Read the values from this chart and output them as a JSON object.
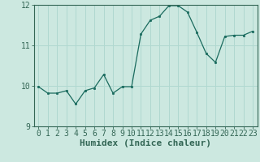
{
  "xlabel": "Humidex (Indice chaleur)",
  "x": [
    0,
    1,
    2,
    3,
    4,
    5,
    6,
    7,
    8,
    9,
    10,
    11,
    12,
    13,
    14,
    15,
    16,
    17,
    18,
    19,
    20,
    21,
    22,
    23
  ],
  "y": [
    9.98,
    9.82,
    9.82,
    9.88,
    9.55,
    9.88,
    9.95,
    10.28,
    9.82,
    9.98,
    9.98,
    11.28,
    11.62,
    11.72,
    11.98,
    11.98,
    11.82,
    11.32,
    10.8,
    10.58,
    11.22,
    11.25,
    11.25,
    11.35
  ],
  "ylim": [
    9,
    12
  ],
  "xlim": [
    -0.5,
    23.5
  ],
  "yticks": [
    9,
    10,
    11,
    12
  ],
  "line_color": "#1a6b5e",
  "marker_color": "#1a6b5e",
  "bg_color": "#cce8e0",
  "grid_color": "#b0d8d0",
  "axis_color": "#336655",
  "tick_fontsize": 7,
  "xlabel_fontsize": 8
}
